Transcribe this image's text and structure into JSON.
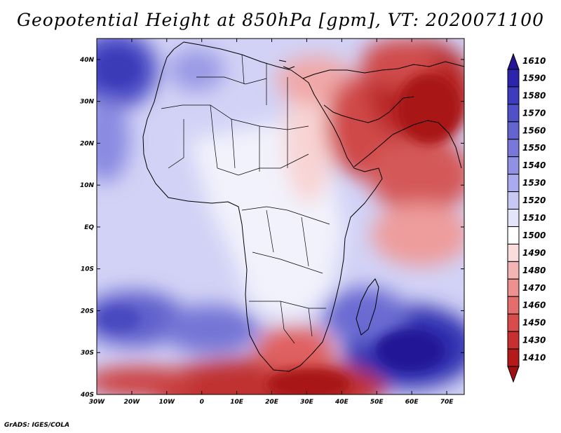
{
  "title": "Geopotential Height at 850hPa [gpm], VT: 2020071100",
  "footer": "GrADS: IGES/COLA",
  "map": {
    "variable": "Geopotential Height",
    "level": "850hPa",
    "units": "gpm",
    "valid_time": "2020071100",
    "lon_range": [
      -30,
      75
    ],
    "lat_range": [
      -40,
      45
    ],
    "lon_ticks": [
      "30W",
      "20W",
      "10W",
      "0",
      "10E",
      "20E",
      "30E",
      "40E",
      "50E",
      "60E",
      "70E"
    ],
    "lat_ticks": [
      "40S",
      "30S",
      "20S",
      "10S",
      "EQ",
      "10N",
      "20N",
      "30N",
      "40N"
    ]
  },
  "colorbar": {
    "labels": [
      "1610",
      "1590",
      "1580",
      "1570",
      "1560",
      "1550",
      "1540",
      "1530",
      "1520",
      "1510",
      "1500",
      "1490",
      "1480",
      "1470",
      "1460",
      "1450",
      "1430",
      "1410"
    ],
    "colors": [
      "#241496",
      "#2c24ac",
      "#3c3cbc",
      "#5050c8",
      "#6464d0",
      "#7878da",
      "#9090e4",
      "#aaaaee",
      "#c8c8f4",
      "#e4e4fa",
      "#ffffff",
      "#fadcdc",
      "#f4b4b4",
      "#ee9090",
      "#e46e6e",
      "#d84c4c",
      "#c83030",
      "#b41a1a",
      "#a01010"
    ]
  }
}
